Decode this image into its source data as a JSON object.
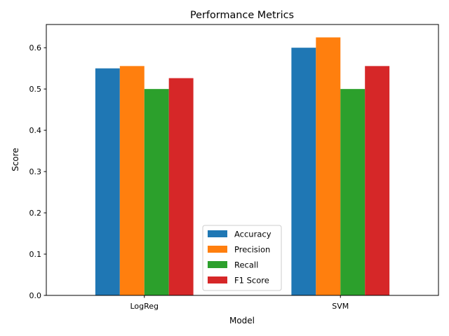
{
  "chart_data": {
    "type": "bar",
    "title": "Performance Metrics",
    "xlabel": "Model",
    "ylabel": "Score",
    "categories": [
      "LogReg",
      "SVM"
    ],
    "series": [
      {
        "name": "Accuracy",
        "color": "#1f77b4",
        "values": [
          0.55,
          0.6
        ]
      },
      {
        "name": "Precision",
        "color": "#ff7f0e",
        "values": [
          0.5556,
          0.625
        ]
      },
      {
        "name": "Recall",
        "color": "#2ca02c",
        "values": [
          0.5,
          0.5
        ]
      },
      {
        "name": "F1 Score",
        "color": "#d62728",
        "values": [
          0.5263,
          0.5556
        ]
      }
    ],
    "ylim": [
      0,
      0.65625
    ],
    "yticks": [
      0.0,
      0.1,
      0.2,
      0.3,
      0.4,
      0.5,
      0.6
    ],
    "ytick_labels": [
      "0.0",
      "0.1",
      "0.2",
      "0.3",
      "0.4",
      "0.5",
      "0.6"
    ],
    "grid": false,
    "legend_position": "bottom-center"
  }
}
